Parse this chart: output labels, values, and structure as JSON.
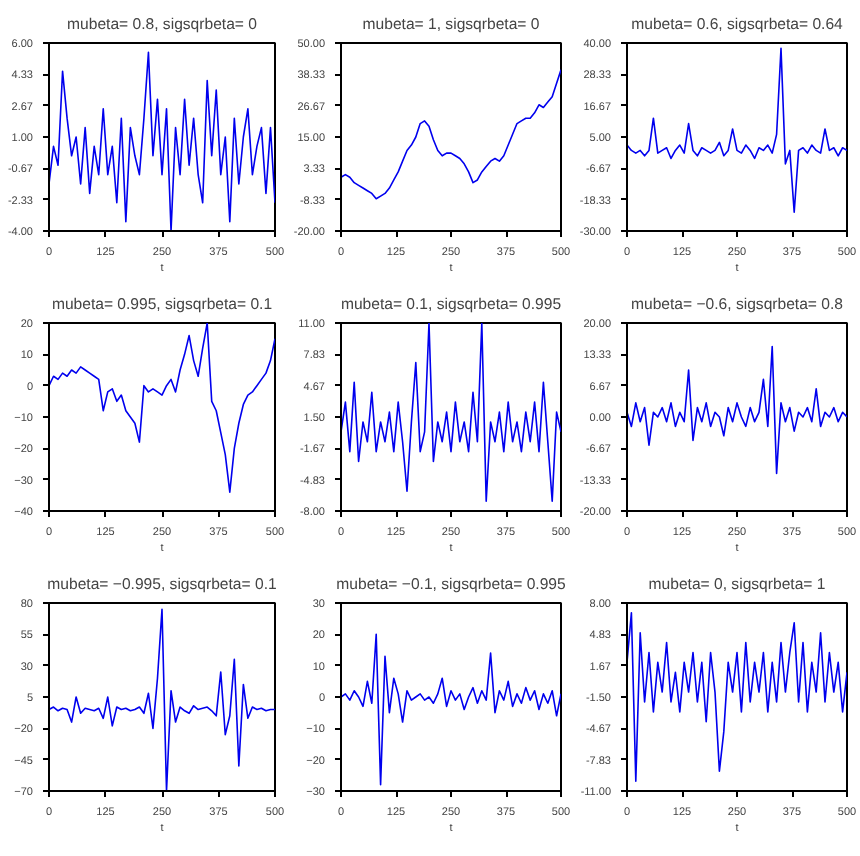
{
  "chart_data": [
    {
      "type": "line",
      "title": "mubeta= 0.8, sigsqrbeta= 0",
      "xlabel": "t",
      "color": "#0000ee",
      "grid": false,
      "xlim": [
        0,
        500
      ],
      "xticks": [
        0,
        125,
        250,
        375,
        500
      ],
      "ylim": [
        -4,
        6
      ],
      "yticks": [
        {
          "value": -4,
          "label": "-4.00"
        },
        {
          "value": -2.33,
          "label": "-2.33"
        },
        {
          "value": -0.67,
          "label": "-0.67"
        },
        {
          "value": 1,
          "label": "1.00"
        },
        {
          "value": 2.67,
          "label": "2.67"
        },
        {
          "value": 4.33,
          "label": "4.33"
        },
        {
          "value": 6,
          "label": "6.00"
        }
      ],
      "x": [
        0,
        10,
        20,
        30,
        40,
        50,
        60,
        70,
        80,
        90,
        100,
        110,
        120,
        130,
        140,
        150,
        160,
        170,
        180,
        190,
        200,
        210,
        220,
        230,
        240,
        250,
        260,
        270,
        280,
        290,
        300,
        310,
        320,
        330,
        340,
        350,
        360,
        370,
        380,
        390,
        400,
        410,
        420,
        430,
        440,
        450,
        460,
        470,
        480,
        490,
        500
      ],
      "values": [
        -1.5,
        0.5,
        -0.5,
        4.5,
        2,
        0,
        1,
        -1.5,
        1.5,
        -2,
        0.5,
        -1,
        2.5,
        -1,
        0.5,
        -2.5,
        2,
        -3.5,
        1.5,
        0,
        -1,
        2,
        5.5,
        0,
        3,
        -1,
        2.5,
        -4,
        1.5,
        -1,
        3,
        -0.5,
        2,
        -1,
        -2.5,
        4,
        0,
        3.5,
        -1,
        1,
        -3.5,
        2,
        -1.5,
        1,
        2.5,
        -1,
        0.5,
        1.5,
        -2,
        1.5,
        -2.5
      ]
    },
    {
      "type": "line",
      "title": "mubeta= 1, sigsqrbeta= 0",
      "xlabel": "t",
      "color": "#0000ee",
      "grid": false,
      "xlim": [
        0,
        500
      ],
      "xticks": [
        0,
        125,
        250,
        375,
        500
      ],
      "ylim": [
        -20,
        50
      ],
      "yticks": [
        {
          "value": -20,
          "label": "-20.00"
        },
        {
          "value": -8.33,
          "label": "-8.33"
        },
        {
          "value": 3.33,
          "label": "3.33"
        },
        {
          "value": 15,
          "label": "15.00"
        },
        {
          "value": 26.67,
          "label": "26.67"
        },
        {
          "value": 38.33,
          "label": "38.33"
        },
        {
          "value": 50,
          "label": "50.00"
        }
      ],
      "x": [
        0,
        10,
        20,
        30,
        40,
        50,
        60,
        70,
        80,
        90,
        100,
        110,
        120,
        130,
        140,
        150,
        160,
        170,
        180,
        190,
        200,
        210,
        220,
        230,
        240,
        250,
        260,
        270,
        280,
        290,
        300,
        310,
        320,
        330,
        340,
        350,
        360,
        370,
        380,
        390,
        400,
        410,
        420,
        430,
        440,
        450,
        460,
        470,
        480,
        490,
        500
      ],
      "values": [
        0,
        1,
        0,
        -2,
        -3,
        -4,
        -5,
        -6,
        -8,
        -7,
        -6,
        -4,
        -1,
        2,
        6,
        10,
        12,
        15,
        20,
        21,
        19,
        14,
        10,
        8,
        9,
        9,
        8,
        7,
        5,
        2,
        -2,
        -1,
        2,
        4,
        6,
        7,
        6,
        8,
        12,
        16,
        20,
        21,
        22,
        22,
        24,
        27,
        26,
        28,
        30,
        35,
        40
      ]
    },
    {
      "type": "line",
      "title": "mubeta= 0.6, sigsqrbeta= 0.64",
      "xlabel": "t",
      "color": "#0000ee",
      "grid": false,
      "xlim": [
        0,
        500
      ],
      "xticks": [
        0,
        125,
        250,
        375,
        500
      ],
      "ylim": [
        -30,
        40
      ],
      "yticks": [
        {
          "value": -30,
          "label": "-30.00"
        },
        {
          "value": -18.33,
          "label": "-18.33"
        },
        {
          "value": -6.67,
          "label": "-6.67"
        },
        {
          "value": 5,
          "label": "5.00"
        },
        {
          "value": 16.67,
          "label": "16.67"
        },
        {
          "value": 28.33,
          "label": "28.33"
        },
        {
          "value": 40,
          "label": "40.00"
        }
      ],
      "x": [
        0,
        10,
        20,
        30,
        40,
        50,
        60,
        70,
        80,
        90,
        100,
        110,
        120,
        130,
        140,
        150,
        160,
        170,
        180,
        190,
        200,
        210,
        220,
        230,
        240,
        250,
        260,
        270,
        280,
        290,
        300,
        310,
        320,
        330,
        340,
        350,
        360,
        370,
        380,
        390,
        400,
        410,
        420,
        430,
        440,
        450,
        460,
        470,
        480,
        490,
        500
      ],
      "values": [
        2,
        0,
        -1,
        0,
        -2,
        0,
        12,
        -1,
        0,
        1,
        -3,
        0,
        2,
        -1,
        10,
        0,
        -2,
        1,
        0,
        -1,
        0,
        3,
        -2,
        0,
        8,
        0,
        -1,
        2,
        0,
        -3,
        1,
        0,
        2,
        -1,
        6,
        38,
        -5,
        0,
        -23,
        0,
        1,
        -1,
        2,
        0,
        -1,
        8,
        0,
        1,
        -2,
        1,
        0
      ]
    },
    {
      "type": "line",
      "title": "mubeta= 0.995, sigsqrbeta= 0.1",
      "xlabel": "t",
      "color": "#0000ee",
      "grid": false,
      "xlim": [
        0,
        500
      ],
      "xticks": [
        0,
        125,
        250,
        375,
        500
      ],
      "ylim": [
        -40,
        20
      ],
      "yticks": [
        -40,
        -30,
        -20,
        -10,
        0,
        10,
        20
      ],
      "x": [
        0,
        10,
        20,
        30,
        40,
        50,
        60,
        70,
        80,
        90,
        100,
        110,
        120,
        130,
        140,
        150,
        160,
        170,
        180,
        190,
        200,
        210,
        220,
        230,
        240,
        250,
        260,
        270,
        280,
        290,
        300,
        310,
        320,
        330,
        340,
        350,
        360,
        370,
        380,
        390,
        400,
        410,
        420,
        430,
        440,
        450,
        460,
        470,
        480,
        490,
        500
      ],
      "values": [
        0,
        3,
        2,
        4,
        3,
        5,
        4,
        6,
        5,
        4,
        3,
        2,
        -8,
        -2,
        -1,
        -5,
        -3,
        -8,
        -10,
        -12,
        -18,
        0,
        -2,
        -1,
        -2,
        -3,
        0,
        2,
        -2,
        5,
        10,
        16,
        8,
        3,
        12,
        20,
        -5,
        -8,
        -15,
        -22,
        -34,
        -20,
        -12,
        -6,
        -3,
        -2,
        0,
        2,
        4,
        8,
        15
      ]
    },
    {
      "type": "line",
      "title": "mubeta= 0.1, sigsqrbeta= 0.995",
      "xlabel": "t",
      "color": "#0000ee",
      "grid": false,
      "xlim": [
        0,
        500
      ],
      "xticks": [
        0,
        125,
        250,
        375,
        500
      ],
      "ylim": [
        -8,
        11
      ],
      "yticks": [
        {
          "value": -8,
          "label": "-8.00"
        },
        {
          "value": -4.83,
          "label": "-4.83"
        },
        {
          "value": -1.67,
          "label": "-1.67"
        },
        {
          "value": 1.5,
          "label": "1.50"
        },
        {
          "value": 4.67,
          "label": "4.67"
        },
        {
          "value": 7.83,
          "label": "7.83"
        },
        {
          "value": 11,
          "label": "11.00"
        }
      ],
      "x": [
        0,
        10,
        20,
        30,
        40,
        50,
        60,
        70,
        80,
        90,
        100,
        110,
        120,
        130,
        140,
        150,
        160,
        170,
        180,
        190,
        200,
        210,
        220,
        230,
        240,
        250,
        260,
        270,
        280,
        290,
        300,
        310,
        320,
        330,
        340,
        350,
        360,
        370,
        380,
        390,
        400,
        410,
        420,
        430,
        440,
        450,
        460,
        470,
        480,
        490,
        500
      ],
      "values": [
        0,
        3,
        -2,
        5,
        -3,
        1,
        -1,
        4,
        -2,
        1,
        -1,
        2,
        -2,
        3,
        -1,
        -6,
        1,
        7,
        -2,
        0,
        11,
        -3,
        1,
        -1,
        2,
        -2,
        3,
        -1,
        1,
        -2,
        4,
        -1,
        11,
        -7,
        1,
        -1,
        2,
        -2,
        3,
        -1,
        1,
        -2,
        2,
        -1,
        3,
        -2,
        5,
        -1,
        -7,
        2,
        0
      ]
    },
    {
      "type": "line",
      "title": "mubeta= −0.6, sigsqrbeta= 0.8",
      "xlabel": "t",
      "color": "#0000ee",
      "grid": false,
      "xlim": [
        0,
        500
      ],
      "xticks": [
        0,
        125,
        250,
        375,
        500
      ],
      "ylim": [
        -20,
        20
      ],
      "yticks": [
        {
          "value": -20,
          "label": "-20.00"
        },
        {
          "value": -13.33,
          "label": "-13.33"
        },
        {
          "value": -6.67,
          "label": "-6.67"
        },
        {
          "value": 0,
          "label": "0.00"
        },
        {
          "value": 6.67,
          "label": "6.67"
        },
        {
          "value": 13.33,
          "label": "13.33"
        },
        {
          "value": 20,
          "label": "20.00"
        }
      ],
      "x": [
        0,
        10,
        20,
        30,
        40,
        50,
        60,
        70,
        80,
        90,
        100,
        110,
        120,
        130,
        140,
        150,
        160,
        170,
        180,
        190,
        200,
        210,
        220,
        230,
        240,
        250,
        260,
        270,
        280,
        290,
        300,
        310,
        320,
        330,
        340,
        350,
        360,
        370,
        380,
        390,
        400,
        410,
        420,
        430,
        440,
        450,
        460,
        470,
        480,
        490,
        500
      ],
      "values": [
        1,
        -2,
        3,
        -1,
        2,
        -6,
        1,
        0,
        2,
        -1,
        3,
        -2,
        1,
        -1,
        10,
        -5,
        2,
        -1,
        3,
        -2,
        1,
        0,
        -4,
        2,
        -1,
        3,
        0,
        -2,
        2,
        -1,
        1,
        8,
        -2,
        15,
        -12,
        3,
        -1,
        2,
        -3,
        1,
        0,
        2,
        -1,
        6,
        -2,
        1,
        0,
        2,
        -1,
        1,
        0
      ]
    },
    {
      "type": "line",
      "title": "mubeta= −0.995, sigsqrbeta= 0.1",
      "xlabel": "t",
      "color": "#0000ee",
      "grid": false,
      "xlim": [
        0,
        500
      ],
      "xticks": [
        0,
        125,
        250,
        375,
        500
      ],
      "ylim": [
        -70,
        80
      ],
      "yticks": [
        -70,
        -45,
        -20,
        5,
        30,
        55,
        80
      ],
      "x": [
        0,
        10,
        20,
        30,
        40,
        50,
        60,
        70,
        80,
        90,
        100,
        110,
        120,
        130,
        140,
        150,
        160,
        170,
        180,
        190,
        200,
        210,
        220,
        230,
        240,
        250,
        260,
        270,
        280,
        290,
        300,
        310,
        320,
        330,
        340,
        350,
        360,
        370,
        380,
        390,
        400,
        410,
        420,
        430,
        440,
        450,
        460,
        470,
        480,
        490,
        500
      ],
      "values": [
        -5,
        -3,
        -6,
        -4,
        -5,
        -15,
        5,
        -8,
        -4,
        -5,
        -6,
        -4,
        -12,
        5,
        -18,
        -3,
        -5,
        -4,
        -6,
        -5,
        -3,
        -8,
        8,
        -20,
        20,
        75,
        -70,
        10,
        -15,
        -3,
        -6,
        -8,
        -2,
        -5,
        -4,
        -3,
        -6,
        -10,
        25,
        -25,
        -10,
        35,
        -50,
        15,
        -12,
        -3,
        -5,
        -4,
        -6,
        -5,
        -5
      ]
    },
    {
      "type": "line",
      "title": "mubeta= −0.1, sigsqrbeta= 0.995",
      "xlabel": "t",
      "color": "#0000ee",
      "grid": false,
      "xlim": [
        0,
        500
      ],
      "xticks": [
        0,
        125,
        250,
        375,
        500
      ],
      "ylim": [
        -30,
        30
      ],
      "yticks": [
        -30,
        -20,
        -10,
        0,
        10,
        20,
        30
      ],
      "x": [
        0,
        10,
        20,
        30,
        40,
        50,
        60,
        70,
        80,
        90,
        100,
        110,
        120,
        130,
        140,
        150,
        160,
        170,
        180,
        190,
        200,
        210,
        220,
        230,
        240,
        250,
        260,
        270,
        280,
        290,
        300,
        310,
        320,
        330,
        340,
        350,
        360,
        370,
        380,
        390,
        400,
        410,
        420,
        430,
        440,
        450,
        460,
        470,
        480,
        490,
        500
      ],
      "values": [
        0,
        1,
        -1,
        2,
        0,
        -3,
        5,
        -2,
        20,
        -28,
        13,
        -5,
        6,
        1,
        -8,
        2,
        -1,
        0,
        1,
        -1,
        0,
        -2,
        1,
        6,
        -3,
        2,
        -1,
        1,
        -4,
        0,
        3,
        -2,
        2,
        -1,
        14,
        -5,
        2,
        -1,
        5,
        -3,
        1,
        -2,
        3,
        -1,
        2,
        -4,
        1,
        -2,
        2,
        -6,
        1
      ]
    },
    {
      "type": "line",
      "title": "mubeta= 0, sigsqrbeta= 1",
      "xlabel": "t",
      "color": "#0000ee",
      "grid": false,
      "xlim": [
        0,
        500
      ],
      "xticks": [
        0,
        125,
        250,
        375,
        500
      ],
      "ylim": [
        -11,
        8
      ],
      "yticks": [
        {
          "value": -11,
          "label": "-11.00"
        },
        {
          "value": -7.83,
          "label": "-7.83"
        },
        {
          "value": -4.67,
          "label": "-4.67"
        },
        {
          "value": -1.5,
          "label": "-1.50"
        },
        {
          "value": 1.67,
          "label": "1.67"
        },
        {
          "value": 4.83,
          "label": "4.83"
        },
        {
          "value": 8,
          "label": "8.00"
        }
      ],
      "x": [
        0,
        10,
        20,
        30,
        40,
        50,
        60,
        70,
        80,
        90,
        100,
        110,
        120,
        130,
        140,
        150,
        160,
        170,
        180,
        190,
        200,
        210,
        220,
        230,
        240,
        250,
        260,
        270,
        280,
        290,
        300,
        310,
        320,
        330,
        340,
        350,
        360,
        370,
        380,
        390,
        400,
        410,
        420,
        430,
        440,
        450,
        460,
        470,
        480,
        490,
        500
      ],
      "values": [
        2,
        7,
        -10,
        5,
        -2,
        3,
        -3,
        2,
        -1,
        4,
        -2,
        1,
        -3,
        2,
        -1,
        3,
        -2,
        2,
        -4,
        3,
        -1,
        -9,
        -5,
        2,
        -1,
        3,
        -3,
        4,
        -2,
        2,
        -1,
        3,
        -3,
        2,
        -2,
        4,
        -1,
        3,
        6,
        -2,
        4,
        -3,
        2,
        -1,
        5,
        -2,
        3,
        -1,
        2,
        -3,
        1
      ]
    }
  ]
}
